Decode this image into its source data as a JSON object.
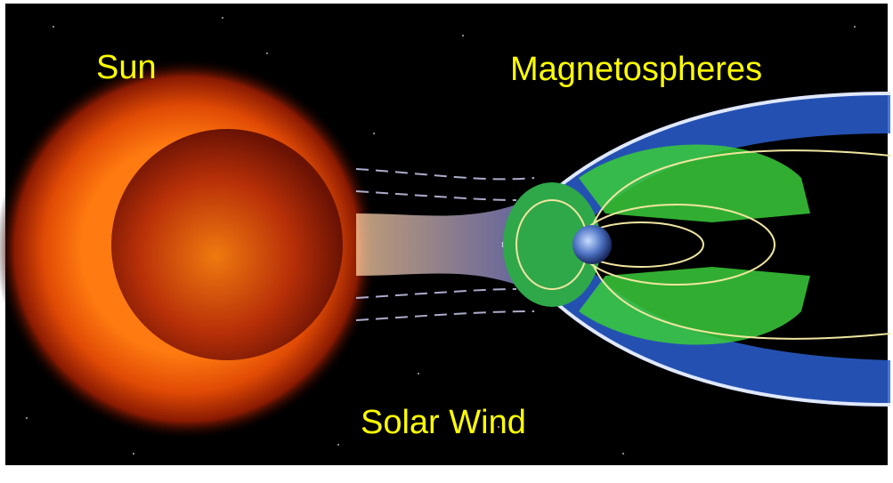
{
  "labels": {
    "sun": "Sun",
    "magnetospheres": "Magnetospheres",
    "solar_wind": "Solar Wind"
  }
}
